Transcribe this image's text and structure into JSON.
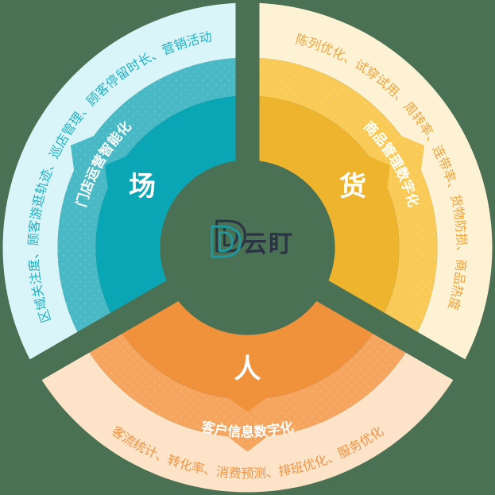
{
  "page": {
    "background": "#4a7154"
  },
  "logo": {
    "mark": "D",
    "wordmark": "云盯",
    "mark_front_color": "#20989e",
    "mark_back_color": "#2a3444",
    "text_color": "#2a3444"
  },
  "segments": [
    {
      "id": "chang",
      "center_angle": 150,
      "core_label": "场",
      "mid_label": "门店运营智能化",
      "outer_label": "区域关注度、顾客游逛轨迹、巡店管理、顾客停留时长、营销活动",
      "colors": {
        "inner": "#0aa6b6",
        "middle": "#49b9c6",
        "outer": "#daf5fa",
        "outer_text": "#1fb0c2",
        "label_text": "#ffffff"
      }
    },
    {
      "id": "huo",
      "center_angle": 30,
      "core_label": "货",
      "mid_label": "商品管理数字化",
      "outer_label": "陈列优化、试穿试用、周转率、连带率、货物防损、商品热度",
      "colors": {
        "inner": "#efb42d",
        "middle": "#f9ca55",
        "outer": "#fdf2d4",
        "outer_text": "#eda43e",
        "label_text": "#ffffff"
      }
    },
    {
      "id": "ren",
      "center_angle": 270,
      "core_label": "人",
      "mid_label": "客户信息数字化",
      "outer_label": "客流统计、转化率、消费预测、排班优化、服务优化",
      "colors": {
        "inner": "#f0913c",
        "middle": "#f5a55e",
        "outer": "#fde3c8",
        "outer_text": "#ef9443",
        "label_text": "#ffffff"
      }
    }
  ]
}
